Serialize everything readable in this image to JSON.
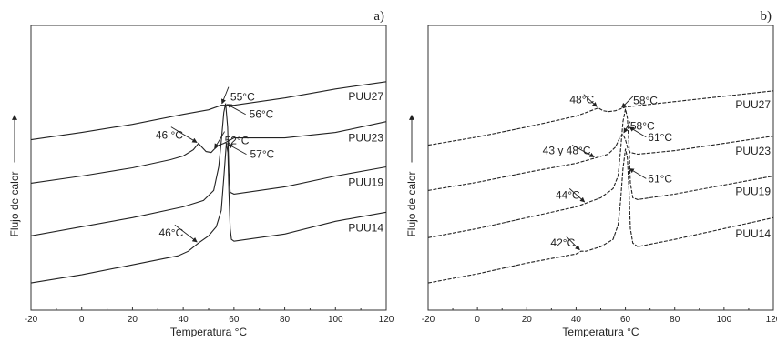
{
  "chart_data": [
    {
      "type": "line",
      "panel_label": "a)",
      "xlabel": "Temperatura °C",
      "ylabel": "Flujo de calor",
      "xlim": [
        -20,
        120
      ],
      "xticks": [
        -20,
        0,
        20,
        40,
        60,
        80,
        100,
        120
      ],
      "grid": false,
      "legend": "inline labels at right end of each curve",
      "line_style": "solid",
      "series": [
        {
          "name": "PUU27",
          "offset": 0.79,
          "points": [
            [
              -20,
              0
            ],
            [
              0,
              0.04
            ],
            [
              20,
              0.085
            ],
            [
              40,
              0.14
            ],
            [
              50,
              0.165
            ],
            [
              55,
              0.19
            ],
            [
              60,
              0.19
            ],
            [
              80,
              0.23
            ],
            [
              100,
              0.28
            ],
            [
              120,
              0.32
            ]
          ],
          "annotations": [
            {
              "text": "55°C",
              "x": 55
            }
          ]
        },
        {
          "name": "PUU23",
          "offset": 0.55,
          "points": [
            [
              -20,
              0
            ],
            [
              0,
              0.04
            ],
            [
              20,
              0.085
            ],
            [
              35,
              0.13
            ],
            [
              40,
              0.15
            ],
            [
              44,
              0.185
            ],
            [
              46,
              0.22
            ],
            [
              47,
              0.205
            ],
            [
              49,
              0.175
            ],
            [
              51,
              0.17
            ],
            [
              52,
              0.185
            ],
            [
              54,
              0.21
            ],
            [
              56,
              0.22
            ],
            [
              60,
              0.25
            ],
            [
              80,
              0.25
            ],
            [
              100,
              0.28
            ],
            [
              120,
              0.34
            ]
          ],
          "annotations": [
            {
              "text": "46 °C",
              "x": 46
            },
            {
              "text": "52°C",
              "x": 52
            }
          ]
        },
        {
          "name": "PUU19",
          "offset": 0.26,
          "points": [
            [
              -20,
              0
            ],
            [
              0,
              0.05
            ],
            [
              20,
              0.1
            ],
            [
              40,
              0.16
            ],
            [
              48,
              0.195
            ],
            [
              52,
              0.25
            ],
            [
              54,
              0.38
            ],
            [
              55,
              0.52
            ],
            [
              56,
              0.68
            ],
            [
              56.7,
              0.73
            ],
            [
              57.5,
              0.6
            ],
            [
              58,
              0.35
            ],
            [
              58.5,
              0.24
            ],
            [
              60,
              0.23
            ],
            [
              80,
              0.27
            ],
            [
              100,
              0.33
            ],
            [
              120,
              0.38
            ]
          ],
          "annotations": [
            {
              "text": "56°C",
              "x": 56.7
            }
          ]
        },
        {
          "name": "PUU14",
          "offset": 0.0,
          "points": [
            [
              -20,
              0
            ],
            [
              0,
              0.045
            ],
            [
              20,
              0.1
            ],
            [
              38,
              0.15
            ],
            [
              42,
              0.175
            ],
            [
              46,
              0.22
            ],
            [
              50,
              0.26
            ],
            [
              53,
              0.31
            ],
            [
              55,
              0.4
            ],
            [
              56,
              0.58
            ],
            [
              57,
              0.77
            ],
            [
              57.6,
              0.72
            ],
            [
              58,
              0.5
            ],
            [
              58.5,
              0.3
            ],
            [
              59,
              0.24
            ],
            [
              60,
              0.23
            ],
            [
              80,
              0.27
            ],
            [
              100,
              0.34
            ],
            [
              120,
              0.39
            ]
          ],
          "annotations": [
            {
              "text": "46°C",
              "x": 46
            },
            {
              "text": "57°C",
              "x": 57
            }
          ]
        }
      ]
    },
    {
      "type": "line",
      "panel_label": "b)",
      "xlabel": "Temperatura °C",
      "ylabel": "Flujo de calor",
      "xlim": [
        -20,
        120
      ],
      "xticks": [
        -20,
        0,
        20,
        40,
        60,
        80,
        100,
        120
      ],
      "grid": false,
      "legend": "inline labels at right end of each curve",
      "line_style": "dashed",
      "series": [
        {
          "name": "PUU27",
          "offset": 0.76,
          "points": [
            [
              -20,
              0
            ],
            [
              0,
              0.045
            ],
            [
              20,
              0.1
            ],
            [
              40,
              0.16
            ],
            [
              47,
              0.195
            ],
            [
              49,
              0.205
            ],
            [
              51,
              0.19
            ],
            [
              53,
              0.185
            ],
            [
              56,
              0.19
            ],
            [
              58,
              0.2
            ],
            [
              60,
              0.21
            ],
            [
              80,
              0.24
            ],
            [
              100,
              0.27
            ],
            [
              120,
              0.3
            ]
          ],
          "annotations": [
            {
              "text": "48°C",
              "x": 49
            },
            {
              "text": "58°C",
              "x": 58
            }
          ]
        },
        {
          "name": "PUU23",
          "offset": 0.51,
          "points": [
            [
              -20,
              0
            ],
            [
              0,
              0.045
            ],
            [
              20,
              0.1
            ],
            [
              40,
              0.15
            ],
            [
              48,
              0.18
            ],
            [
              53,
              0.2
            ],
            [
              56,
              0.24
            ],
            [
              58,
              0.3
            ],
            [
              59,
              0.31
            ],
            [
              60,
              0.28
            ],
            [
              61,
              0.23
            ],
            [
              62,
              0.21
            ],
            [
              65,
              0.2
            ],
            [
              80,
              0.22
            ],
            [
              100,
              0.26
            ],
            [
              120,
              0.3
            ]
          ],
          "annotations": [
            {
              "text": "43 y 48°C",
              "x": 48
            },
            {
              "text": "58°C",
              "x": 59
            }
          ]
        },
        {
          "name": "PUU19",
          "offset": 0.25,
          "points": [
            [
              -20,
              0
            ],
            [
              0,
              0.05
            ],
            [
              20,
              0.11
            ],
            [
              40,
              0.17
            ],
            [
              44,
              0.19
            ],
            [
              50,
              0.22
            ],
            [
              55,
              0.27
            ],
            [
              57,
              0.34
            ],
            [
              58,
              0.48
            ],
            [
              59,
              0.64
            ],
            [
              60,
              0.71
            ],
            [
              60.8,
              0.66
            ],
            [
              61.5,
              0.5
            ],
            [
              62,
              0.3
            ],
            [
              63,
              0.22
            ],
            [
              65,
              0.21
            ],
            [
              80,
              0.24
            ],
            [
              100,
              0.29
            ],
            [
              120,
              0.34
            ]
          ],
          "annotations": [
            {
              "text": "44°C",
              "x": 44
            },
            {
              "text": "61°C",
              "x": 61
            }
          ]
        },
        {
          "name": "PUU14",
          "offset": 0.0,
          "points": [
            [
              -20,
              0
            ],
            [
              0,
              0.05
            ],
            [
              20,
              0.11
            ],
            [
              40,
              0.16
            ],
            [
              42,
              0.175
            ],
            [
              44,
              0.175
            ],
            [
              50,
              0.2
            ],
            [
              55,
              0.24
            ],
            [
              57,
              0.32
            ],
            [
              58,
              0.45
            ],
            [
              59,
              0.63
            ],
            [
              60,
              0.74
            ],
            [
              60.8,
              0.69
            ],
            [
              61.5,
              0.5
            ],
            [
              62,
              0.3
            ],
            [
              63,
              0.22
            ],
            [
              65,
              0.2
            ],
            [
              80,
              0.24
            ],
            [
              100,
              0.3
            ],
            [
              120,
              0.36
            ]
          ],
          "annotations": [
            {
              "text": "42°C",
              "x": 42
            },
            {
              "text": "61°C",
              "x": 61
            }
          ]
        }
      ]
    }
  ]
}
